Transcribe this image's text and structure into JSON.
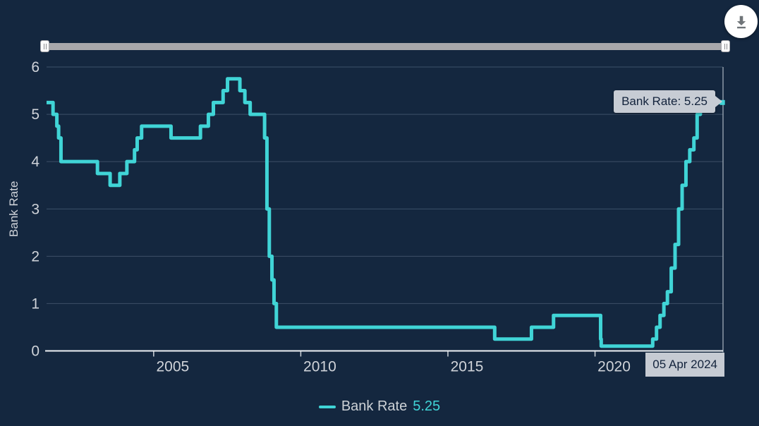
{
  "toolbar": {
    "download_icon": "download-icon"
  },
  "tooltip": {
    "text": "Bank Rate: 5.25"
  },
  "crosshair": {
    "text": "05 Apr 2024"
  },
  "legend": {
    "label": "Bank Rate",
    "value": "5.25"
  },
  "colors": {
    "background": "#14273f",
    "line": "#40d4d6",
    "tooltip_bg": "#c7ccd4",
    "axis_text": "#cfd3d9",
    "gridline": "#3d5068",
    "axis_line": "#eef1f4",
    "slider_track": "#a8a8ab"
  },
  "chart_data": {
    "type": "line",
    "step": true,
    "title": "",
    "xlabel": "",
    "ylabel": "Bank Rate",
    "ylim": [
      0,
      6
    ],
    "xlim": [
      2001.36,
      2024.35
    ],
    "y_ticks": [
      0,
      1,
      2,
      3,
      4,
      5,
      6
    ],
    "x_ticks": [
      {
        "year": 2005,
        "label": "2005"
      },
      {
        "year": 2010,
        "label": "2010"
      },
      {
        "year": 2015,
        "label": "2015"
      },
      {
        "year": 2020,
        "label": "2020"
      }
    ],
    "grid": "horizontal",
    "legend_position": "bottom-center",
    "series": [
      {
        "name": "Bank Rate",
        "color": "#40d4d6",
        "current_value": 5.25,
        "current_date": "05 Apr 2024",
        "points": [
          [
            2001.36,
            5.25
          ],
          [
            2001.58,
            5.0
          ],
          [
            2001.71,
            4.75
          ],
          [
            2001.77,
            4.5
          ],
          [
            2001.85,
            4.0
          ],
          [
            2003.09,
            3.75
          ],
          [
            2003.52,
            3.5
          ],
          [
            2003.85,
            3.75
          ],
          [
            2004.09,
            4.0
          ],
          [
            2004.35,
            4.25
          ],
          [
            2004.44,
            4.5
          ],
          [
            2004.59,
            4.75
          ],
          [
            2005.59,
            4.5
          ],
          [
            2006.59,
            4.75
          ],
          [
            2006.86,
            5.0
          ],
          [
            2007.03,
            5.25
          ],
          [
            2007.36,
            5.5
          ],
          [
            2007.51,
            5.75
          ],
          [
            2007.93,
            5.5
          ],
          [
            2008.1,
            5.25
          ],
          [
            2008.28,
            5.0
          ],
          [
            2008.77,
            4.5
          ],
          [
            2008.85,
            3.0
          ],
          [
            2008.93,
            2.0
          ],
          [
            2009.02,
            1.5
          ],
          [
            2009.09,
            1.0
          ],
          [
            2009.17,
            0.5
          ],
          [
            2016.59,
            0.25
          ],
          [
            2017.84,
            0.5
          ],
          [
            2018.59,
            0.75
          ],
          [
            2020.19,
            0.25
          ],
          [
            2020.21,
            0.1
          ],
          [
            2021.96,
            0.25
          ],
          [
            2022.09,
            0.5
          ],
          [
            2022.21,
            0.75
          ],
          [
            2022.34,
            1.0
          ],
          [
            2022.46,
            1.25
          ],
          [
            2022.59,
            1.75
          ],
          [
            2022.72,
            2.25
          ],
          [
            2022.84,
            3.0
          ],
          [
            2022.96,
            3.5
          ],
          [
            2023.09,
            4.0
          ],
          [
            2023.22,
            4.25
          ],
          [
            2023.36,
            4.5
          ],
          [
            2023.47,
            5.0
          ],
          [
            2023.58,
            5.25
          ],
          [
            2024.27,
            5.25
          ]
        ]
      }
    ]
  }
}
